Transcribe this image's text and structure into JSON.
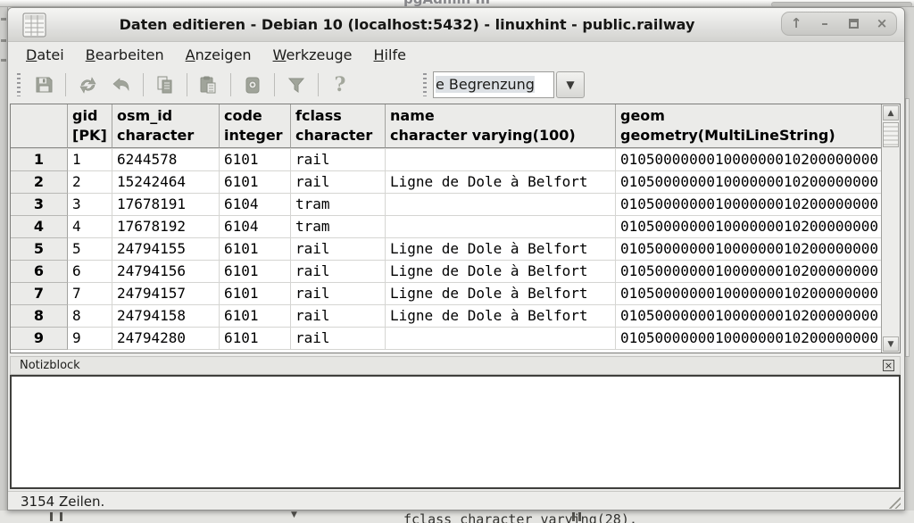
{
  "background": {
    "top_window_title": "pgAdmin III",
    "bottom_fragment": "fclass character varying(28),"
  },
  "window": {
    "title": "Daten editieren - Debian 10 (localhost:5432) - linuxhint - public.railway",
    "controls": [
      {
        "id": "rollup",
        "glyph": "↑"
      },
      {
        "id": "minimize",
        "glyph": "–"
      },
      {
        "id": "maximize",
        "glyph": ""
      },
      {
        "id": "close",
        "glyph": "×"
      }
    ]
  },
  "menu": {
    "items": [
      {
        "id": "datei",
        "label": "Datei"
      },
      {
        "id": "bearbeiten",
        "label": "Bearbeiten"
      },
      {
        "id": "anzeigen",
        "label": "Anzeigen"
      },
      {
        "id": "werkzeuge",
        "label": "Werkzeuge"
      },
      {
        "id": "hilfe",
        "label": "Hilfe"
      }
    ]
  },
  "toolbar": {
    "buttons": [
      {
        "id": "save",
        "icon": "floppy-icon"
      },
      {
        "id": "refresh",
        "icon": "refresh-icon"
      },
      {
        "id": "undo",
        "icon": "undo-icon"
      },
      {
        "id": "copy",
        "icon": "copy-icon"
      },
      {
        "id": "paste",
        "icon": "paste-icon"
      },
      {
        "id": "delete",
        "icon": "delete-icon"
      },
      {
        "id": "filter",
        "icon": "filter-icon"
      },
      {
        "id": "help",
        "icon": "help-icon"
      }
    ],
    "separators_after": [
      "save",
      "undo",
      "copy",
      "paste",
      "delete",
      "filter"
    ],
    "limit_combo": {
      "visible_value": "e Begrenzung",
      "arrow": "▼"
    }
  },
  "grid": {
    "columns": [
      {
        "name": "",
        "type": ""
      },
      {
        "name": "gid",
        "type": "[PK]"
      },
      {
        "name": "osm_id",
        "type": "character"
      },
      {
        "name": "code",
        "type": "integer"
      },
      {
        "name": "fclass",
        "type": "character"
      },
      {
        "name": "name",
        "type": "character varying(100)"
      },
      {
        "name": "geom",
        "type": "geometry(MultiLineString)"
      }
    ],
    "rows": [
      {
        "n": "1",
        "cells": [
          "1",
          "6244578",
          "6101",
          "rail",
          "",
          "010500000001000000010200000000"
        ]
      },
      {
        "n": "2",
        "cells": [
          "2",
          "15242464",
          "6101",
          "rail",
          "Ligne de Dole à Belfort",
          "010500000001000000010200000000"
        ]
      },
      {
        "n": "3",
        "cells": [
          "3",
          "17678191",
          "6104",
          "tram",
          "",
          "010500000001000000010200000000"
        ]
      },
      {
        "n": "4",
        "cells": [
          "4",
          "17678192",
          "6104",
          "tram",
          "",
          "010500000001000000010200000000"
        ]
      },
      {
        "n": "5",
        "cells": [
          "5",
          "24794155",
          "6101",
          "rail",
          "Ligne de Dole à Belfort",
          "010500000001000000010200000000"
        ]
      },
      {
        "n": "6",
        "cells": [
          "6",
          "24794156",
          "6101",
          "rail",
          "Ligne de Dole à Belfort",
          "010500000001000000010200000000"
        ]
      },
      {
        "n": "7",
        "cells": [
          "7",
          "24794157",
          "6101",
          "rail",
          "Ligne de Dole à Belfort",
          "010500000001000000010200000000"
        ]
      },
      {
        "n": "8",
        "cells": [
          "8",
          "24794158",
          "6101",
          "rail",
          "Ligne de Dole à Belfort",
          "010500000001000000010200000000"
        ]
      },
      {
        "n": "9",
        "cells": [
          "9",
          "24794280",
          "6101",
          "rail",
          "",
          "010500000001000000010200000000"
        ]
      }
    ]
  },
  "notes": {
    "title": "Notizblock",
    "value": "",
    "close_glyph": "×"
  },
  "status": {
    "text": "3154 Zeilen."
  },
  "colors": {
    "window_bg": "#ececea",
    "grid_header_bg": "#ebebe9",
    "cell_bg": "#ffffff",
    "disabled_icon": "#a0a49a"
  }
}
